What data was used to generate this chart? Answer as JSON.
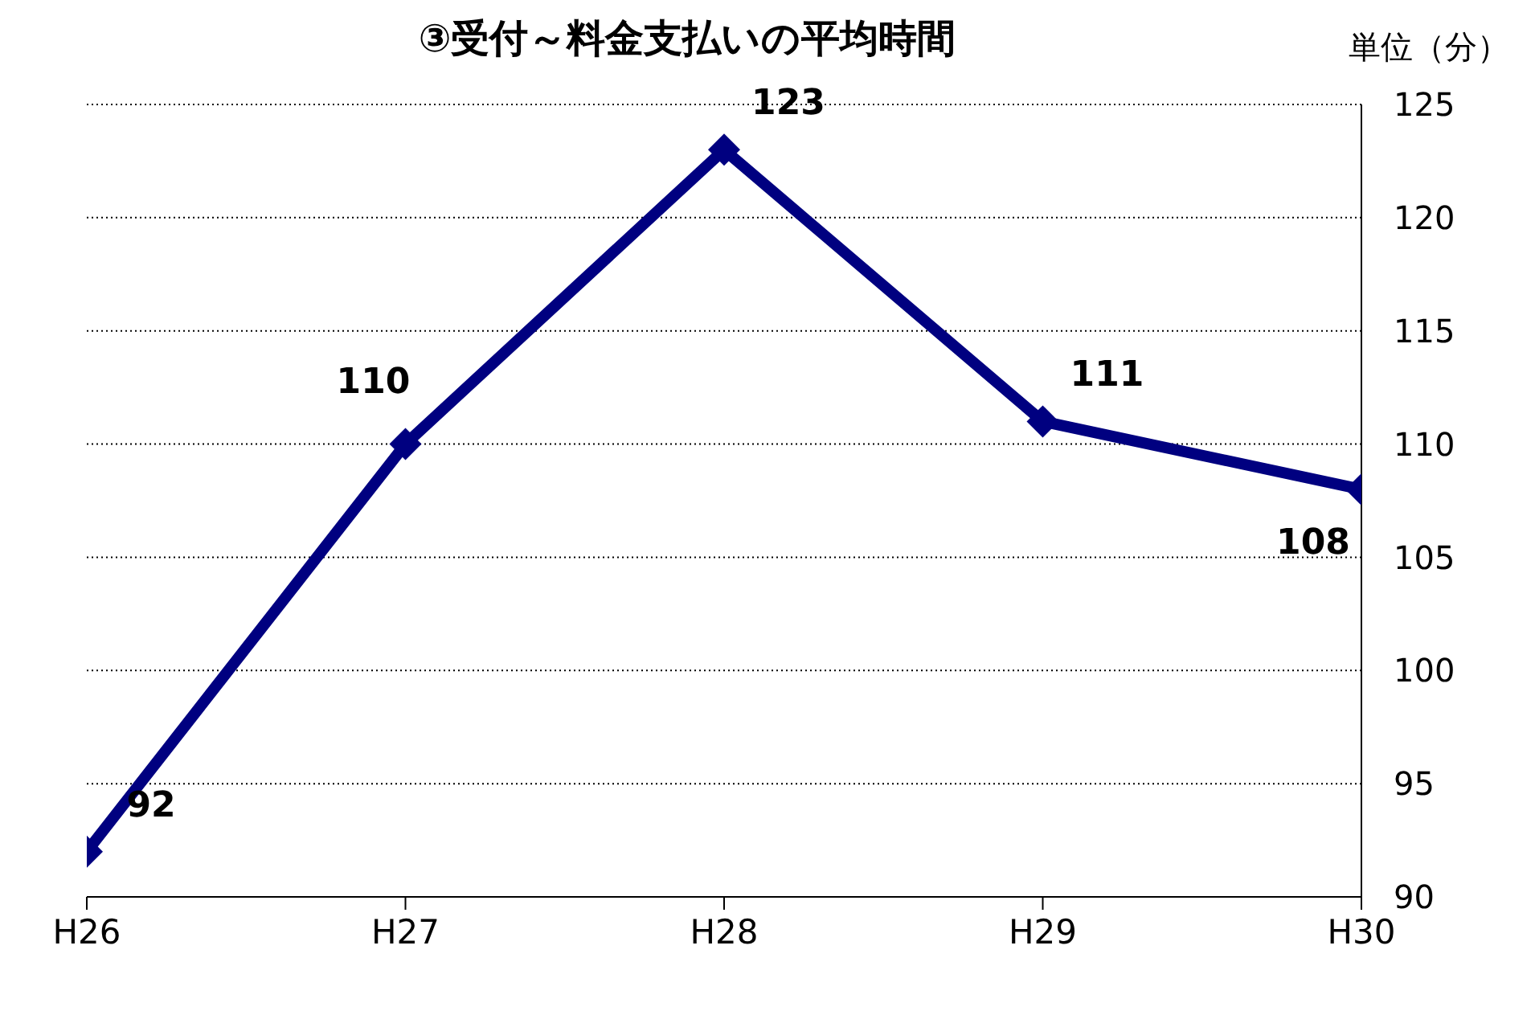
{
  "chart_data": {
    "type": "line",
    "title": "③受付～料金支払いの平均時間",
    "ylabel": "単位（分）",
    "categories": [
      "H26",
      "H27",
      "H28",
      "H29",
      "H30"
    ],
    "series": [
      {
        "color": "#000080",
        "values": [
          92,
          110,
          123,
          111,
          108
        ]
      }
    ],
    "ylim": [
      90,
      125
    ],
    "yticks": [
      90,
      95,
      100,
      105,
      110,
      115,
      120,
      125
    ],
    "grid": "y",
    "marker": "diamond",
    "line_style": "solid",
    "data_labels": true,
    "legend": false
  }
}
